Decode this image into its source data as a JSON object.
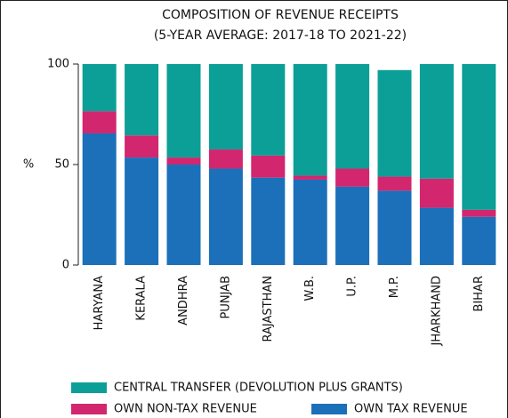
{
  "chart_data": {
    "type": "stacked_bar",
    "title": "COMPOSITION OF REVENUE RECEIPTS",
    "subtitle": "(5-YEAR AVERAGE: 2017-18 TO 2021-22)",
    "y_label": "%",
    "categories": [
      "HARYANA",
      "KERALA",
      "ANDHRA",
      "PUNJAB",
      "RAJASTHAN",
      "W.B.",
      "U.P.",
      "M.P.",
      "JHARKHAND",
      "BIHAR"
    ],
    "series": [
      {
        "name": "OWN TAX REVENUE",
        "color": "#1b70b9",
        "values": [
          65.5,
          53.5,
          50,
          48,
          43.5,
          42.5,
          39,
          37,
          28.5,
          24
        ]
      },
      {
        "name": "OWN NON-TAX REVENUE",
        "color": "#d2266f",
        "values": [
          11,
          11,
          3.5,
          9.5,
          11,
          2,
          9,
          7,
          14.5,
          3.5
        ]
      },
      {
        "name": "CENTRAL TRANSFER (DEVOLUTION PLUS GRANTS)",
        "color": "#0c9f97",
        "values": [
          23.5,
          35.5,
          46.5,
          42.5,
          45.5,
          55.5,
          52,
          53,
          57,
          72.5
        ]
      }
    ],
    "ylim": [
      0,
      100
    ],
    "yticks": [
      0,
      50,
      100
    ]
  }
}
